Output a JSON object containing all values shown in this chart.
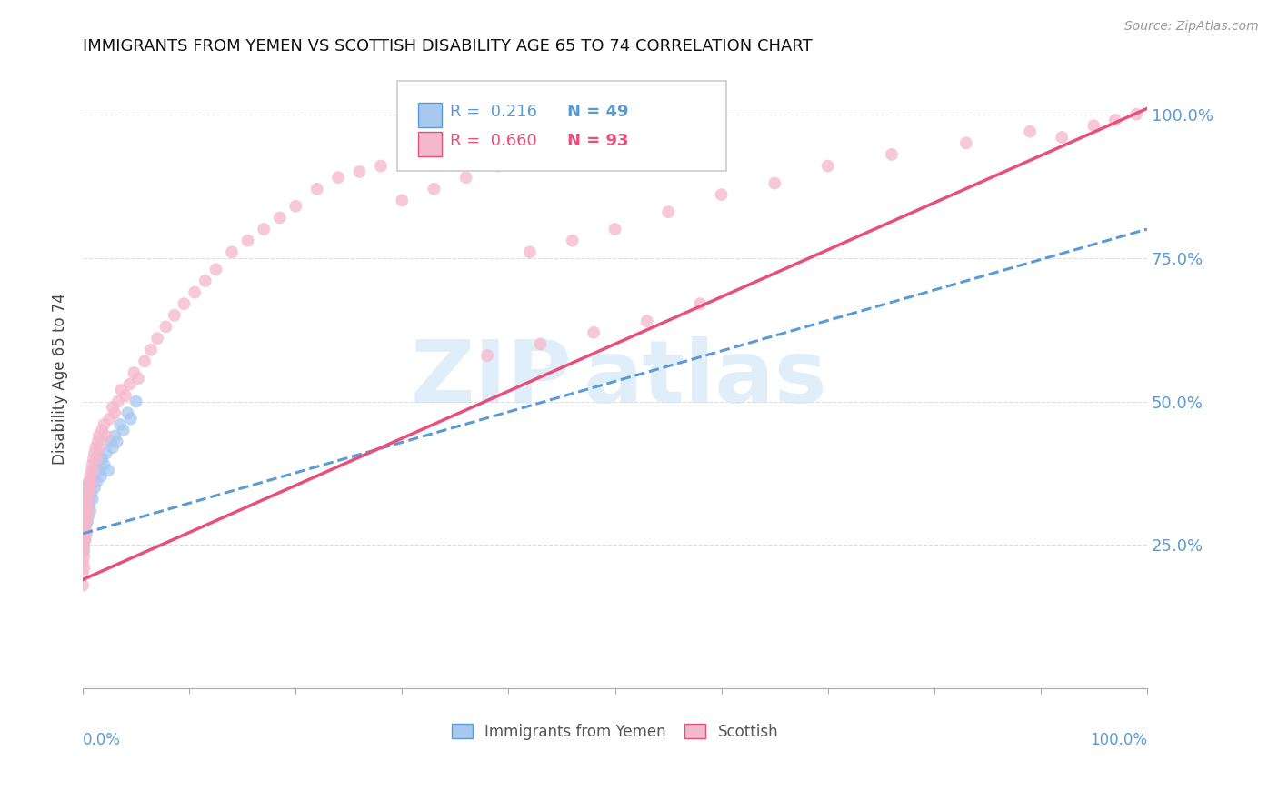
{
  "title": "IMMIGRANTS FROM YEMEN VS SCOTTISH DISABILITY AGE 65 TO 74 CORRELATION CHART",
  "source": "Source: ZipAtlas.com",
  "ylabel": "Disability Age 65 to 74",
  "legend_blue_r": "R =  0.216",
  "legend_blue_n": "N = 49",
  "legend_pink_r": "R =  0.660",
  "legend_pink_n": "N = 93",
  "legend_blue_label": "Immigrants from Yemen",
  "legend_pink_label": "Scottish",
  "blue_color": "#a8c8f0",
  "pink_color": "#f5b8cc",
  "trend_blue_color": "#5b9bd5",
  "trend_pink_color": "#e8507a",
  "watermark_zip": "ZIP",
  "watermark_atlas": "atlas",
  "blue_points_x": [
    0.0,
    0.0,
    0.0,
    0.0,
    0.001,
    0.001,
    0.001,
    0.001,
    0.001,
    0.001,
    0.002,
    0.002,
    0.002,
    0.002,
    0.002,
    0.003,
    0.003,
    0.003,
    0.003,
    0.004,
    0.004,
    0.004,
    0.005,
    0.005,
    0.006,
    0.006,
    0.007,
    0.007,
    0.008,
    0.009,
    0.01,
    0.011,
    0.012,
    0.013,
    0.015,
    0.017,
    0.018,
    0.02,
    0.022,
    0.024,
    0.026,
    0.028,
    0.03,
    0.032,
    0.035,
    0.038,
    0.042,
    0.045,
    0.05
  ],
  "blue_points_y": [
    0.3,
    0.27,
    0.25,
    0.32,
    0.34,
    0.28,
    0.26,
    0.31,
    0.29,
    0.24,
    0.33,
    0.3,
    0.28,
    0.26,
    0.35,
    0.32,
    0.29,
    0.27,
    0.31,
    0.34,
    0.31,
    0.29,
    0.33,
    0.3,
    0.36,
    0.32,
    0.35,
    0.31,
    0.34,
    0.33,
    0.37,
    0.35,
    0.38,
    0.36,
    0.38,
    0.37,
    0.4,
    0.39,
    0.41,
    0.38,
    0.43,
    0.42,
    0.44,
    0.43,
    0.46,
    0.45,
    0.48,
    0.47,
    0.5
  ],
  "pink_points_x": [
    0.0,
    0.0,
    0.0,
    0.0,
    0.0,
    0.001,
    0.001,
    0.001,
    0.001,
    0.001,
    0.002,
    0.002,
    0.002,
    0.002,
    0.003,
    0.003,
    0.003,
    0.003,
    0.004,
    0.004,
    0.004,
    0.005,
    0.005,
    0.005,
    0.006,
    0.006,
    0.007,
    0.007,
    0.008,
    0.008,
    0.009,
    0.01,
    0.01,
    0.011,
    0.012,
    0.013,
    0.014,
    0.015,
    0.016,
    0.018,
    0.02,
    0.022,
    0.025,
    0.028,
    0.03,
    0.033,
    0.036,
    0.04,
    0.044,
    0.048,
    0.052,
    0.058,
    0.064,
    0.07,
    0.078,
    0.086,
    0.095,
    0.105,
    0.115,
    0.125,
    0.14,
    0.155,
    0.17,
    0.185,
    0.2,
    0.22,
    0.24,
    0.26,
    0.28,
    0.3,
    0.33,
    0.36,
    0.39,
    0.42,
    0.46,
    0.5,
    0.55,
    0.6,
    0.65,
    0.7,
    0.76,
    0.83,
    0.89,
    0.92,
    0.95,
    0.97,
    0.99,
    0.38,
    0.43,
    0.48,
    0.53,
    0.58
  ],
  "pink_points_y": [
    0.22,
    0.24,
    0.2,
    0.26,
    0.18,
    0.25,
    0.27,
    0.23,
    0.21,
    0.29,
    0.28,
    0.3,
    0.26,
    0.32,
    0.31,
    0.33,
    0.29,
    0.27,
    0.34,
    0.32,
    0.3,
    0.35,
    0.33,
    0.31,
    0.36,
    0.34,
    0.37,
    0.35,
    0.38,
    0.36,
    0.39,
    0.4,
    0.38,
    0.41,
    0.42,
    0.4,
    0.43,
    0.44,
    0.42,
    0.45,
    0.46,
    0.44,
    0.47,
    0.49,
    0.48,
    0.5,
    0.52,
    0.51,
    0.53,
    0.55,
    0.54,
    0.57,
    0.59,
    0.61,
    0.63,
    0.65,
    0.67,
    0.69,
    0.71,
    0.73,
    0.76,
    0.78,
    0.8,
    0.82,
    0.84,
    0.87,
    0.89,
    0.9,
    0.91,
    0.85,
    0.87,
    0.89,
    0.91,
    0.76,
    0.78,
    0.8,
    0.83,
    0.86,
    0.88,
    0.91,
    0.93,
    0.95,
    0.97,
    0.96,
    0.98,
    0.99,
    1.0,
    0.58,
    0.6,
    0.62,
    0.64,
    0.67
  ],
  "blue_trend_x": [
    0.0,
    1.0
  ],
  "blue_trend_y": [
    0.27,
    0.8
  ],
  "pink_trend_x": [
    0.0,
    1.0
  ],
  "pink_trend_y": [
    0.19,
    1.01
  ],
  "xlim": [
    0.0,
    1.0
  ],
  "ylim": [
    0.0,
    1.08
  ],
  "xticks": [
    0.0,
    0.1,
    0.2,
    0.3,
    0.4,
    0.5,
    0.6,
    0.7,
    0.8,
    0.9,
    1.0
  ],
  "yticks": [
    0.0,
    0.25,
    0.5,
    0.75,
    1.0
  ],
  "ytick_labels": [
    "",
    "25.0%",
    "50.0%",
    "75.0%",
    "100.0%"
  ]
}
